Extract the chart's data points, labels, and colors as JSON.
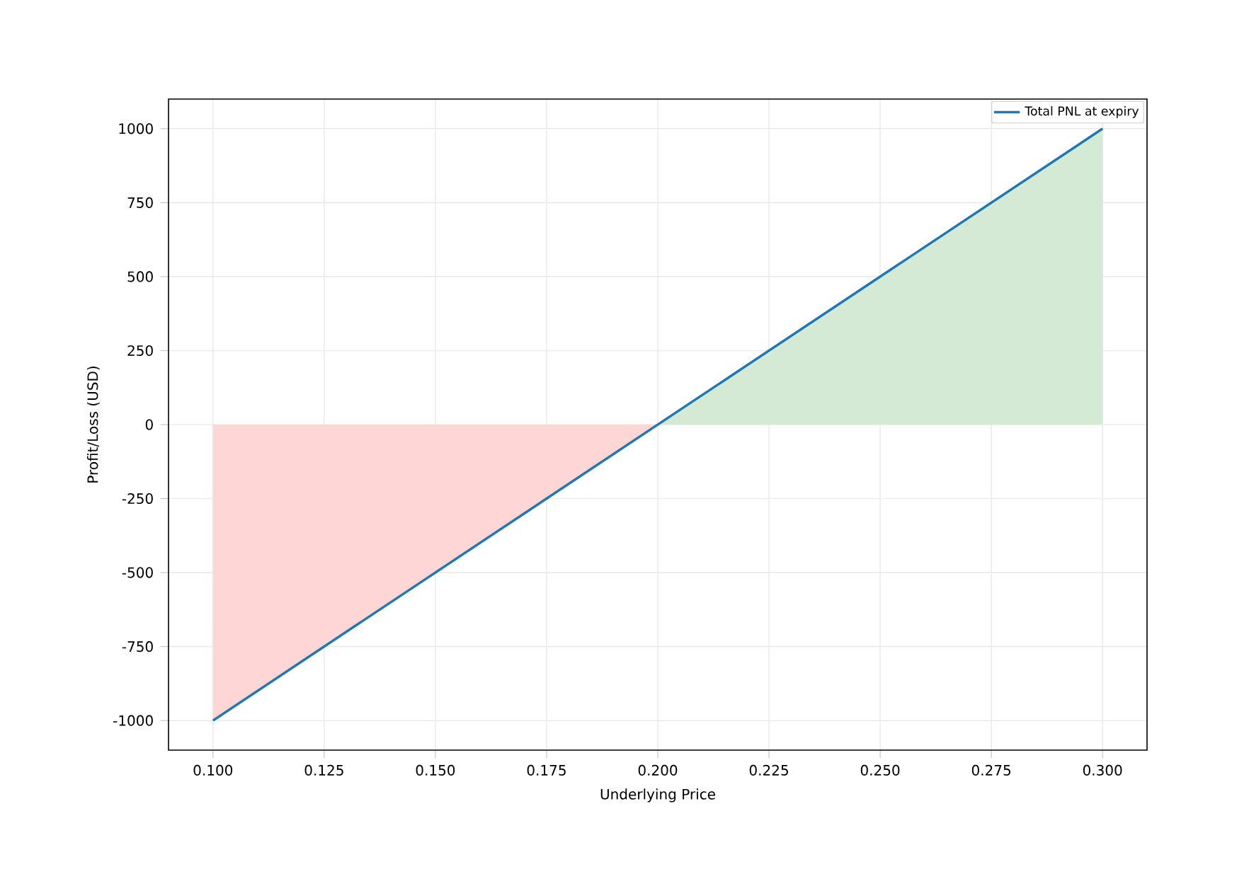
{
  "chart_data": {
    "type": "line",
    "xlabel": "Underlying Price",
    "ylabel": "Profit/Loss (USD)",
    "series": [
      {
        "type": "area",
        "color": "#ffd6d6",
        "x": [
          0.1,
          0.2
        ],
        "values": [
          -1000,
          0
        ]
      },
      {
        "type": "area",
        "color": "#d5ead5",
        "x": [
          0.2,
          0.3
        ],
        "values": [
          0,
          1000
        ]
      },
      {
        "name": "Total PNL at expiry",
        "color": "#1f77b4",
        "x": [
          0.1,
          0.3
        ],
        "values": [
          -1000,
          1000
        ]
      }
    ],
    "xlim": [
      0.09,
      0.31
    ],
    "ylim": [
      -1100,
      1100
    ],
    "xticks": [
      {
        "value": 0.1,
        "label": "0.100"
      },
      {
        "value": 0.125,
        "label": "0.125"
      },
      {
        "value": 0.15,
        "label": "0.150"
      },
      {
        "value": 0.175,
        "label": "0.175"
      },
      {
        "value": 0.2,
        "label": "0.200"
      },
      {
        "value": 0.225,
        "label": "0.225"
      },
      {
        "value": 0.25,
        "label": "0.250"
      },
      {
        "value": 0.275,
        "label": "0.275"
      },
      {
        "value": 0.3,
        "label": "0.300"
      }
    ],
    "yticks": [
      -1000,
      -750,
      -500,
      -250,
      0,
      250,
      500,
      750,
      1000
    ],
    "grid": true,
    "legend": "top right",
    "marker": "none",
    "line_style": "solid"
  }
}
